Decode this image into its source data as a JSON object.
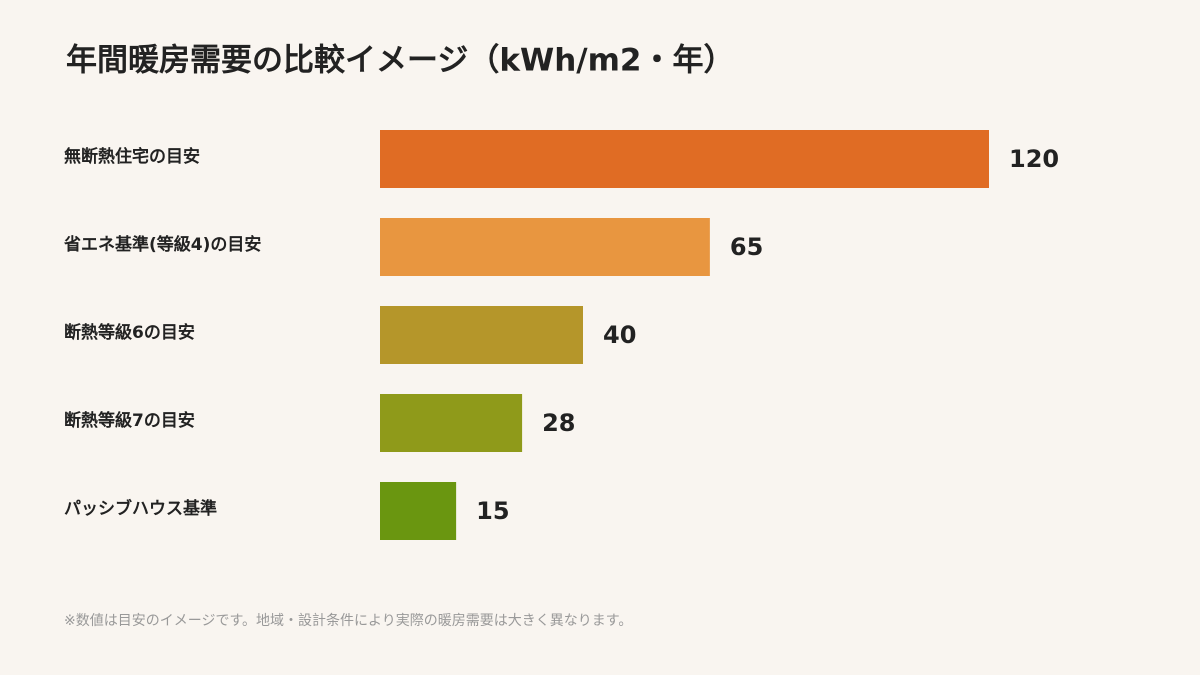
{
  "chart_data": {
    "type": "bar",
    "orientation": "horizontal",
    "title": "年間暖房需要の比較イメージ（kWh/m2・年）",
    "categories": [
      "無断熱住宅の目安",
      "省エネ基準(等級4)の目安",
      "断熱等級6の目安",
      "断熱等級7の目安",
      "パッシブハウス基準"
    ],
    "values": [
      120,
      65,
      40,
      28,
      15
    ],
    "colors": [
      "#e06c24",
      "#e89640",
      "#b5962a",
      "#8f9a1a",
      "#6a9610"
    ],
    "footnote": "※数値は目安のイメージです。地域・設計条件により実際の暖房需要は大きく異なります。"
  }
}
